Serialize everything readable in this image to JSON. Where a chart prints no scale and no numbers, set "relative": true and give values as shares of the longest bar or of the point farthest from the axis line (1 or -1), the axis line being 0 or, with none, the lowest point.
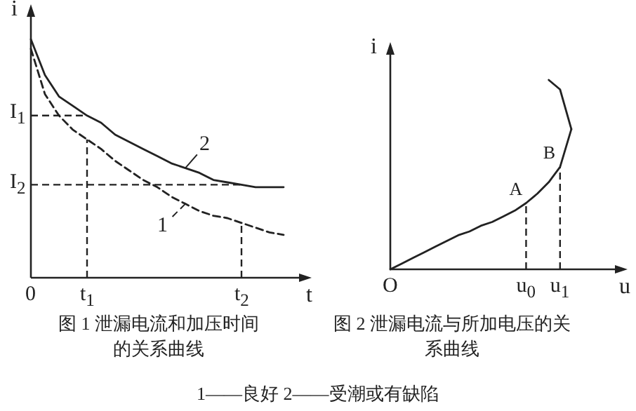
{
  "chart_data": [
    {
      "type": "line",
      "relative": true,
      "title": "图 1 泄漏电流和加压时间的关系曲线",
      "xlabel": "t",
      "ylabel": "i",
      "categories": [
        "0",
        null,
        null,
        null,
        "t$_{1}$",
        null,
        null,
        null,
        null,
        null,
        null,
        null,
        null,
        null,
        null,
        "t$_{2}$",
        null,
        null,
        null
      ],
      "series": [
        {
          "name": "1",
          "color": "#222222",
          "line_style": "dashed",
          "values": [
            0.96,
            0.77,
            0.68,
            0.62,
            0.58,
            0.54,
            0.49,
            0.45,
            0.41,
            0.38,
            0.34,
            0.31,
            0.28,
            0.26,
            0.25,
            0.23,
            0.21,
            0.19,
            0.18
          ]
        },
        {
          "name": "2",
          "color": "#222222",
          "line_style": "solid",
          "values": [
            1,
            0.85,
            0.76,
            0.72,
            0.68,
            0.65,
            0.6,
            0.57,
            0.54,
            0.51,
            0.48,
            0.46,
            0.44,
            0.41,
            0.4,
            0.39,
            0.38,
            0.38,
            0.38
          ]
        }
      ],
      "ref_lines": [
        {
          "axis": "y",
          "value": 0.68,
          "label": "I$_{1}$",
          "line_style": "dashed"
        },
        {
          "axis": "x",
          "value": "t$_{1}$",
          "line_style": "dashed"
        },
        {
          "axis": "y",
          "value": 0.39,
          "label": "I$_{2}$",
          "line_style": "dashed"
        },
        {
          "axis": "x",
          "value": "t$_{2}$",
          "line_style": "dashed"
        }
      ],
      "annotations": [
        "1——良好 2——受潮或有缺陷"
      ]
    },
    {
      "type": "line",
      "relative": true,
      "title": "图 2 泄漏电流与所加电压的关系曲线",
      "xlabel": "u",
      "ylabel": "i",
      "categories": [
        "O",
        null,
        null,
        null,
        null,
        null,
        null,
        null,
        null,
        null,
        null,
        null,
        "u$_{0}$",
        null,
        null,
        "u$_{1}$",
        null
      ],
      "series": [
        {
          "color": "#222222",
          "line_style": "solid",
          "values": [
            0,
            0.03,
            0.06,
            0.09,
            0.12,
            0.15,
            0.18,
            0.2,
            0.23,
            0.25,
            0.28,
            0.31,
            0.35,
            0.4,
            0.46,
            0.54,
            0.74
          ]
        },
        {
          "color": "#222222",
          "line_style": "solid",
          "values": [
            null,
            null,
            null,
            null,
            null,
            null,
            null,
            null,
            null,
            null,
            null,
            null,
            null,
            null,
            1,
            0.95,
            0.74
          ]
        }
      ],
      "ref_lines": [
        {
          "axis": "x",
          "value": "u$_{0}$",
          "line_style": "dashed"
        },
        {
          "axis": "x",
          "value": "u$_{1}$",
          "line_style": "dashed"
        }
      ],
      "annotations": [
        {
          "text": "A",
          "x": "u$_{0}$",
          "y": 0.35
        },
        {
          "text": "B",
          "x": "u$_{1}$",
          "y": 0.54
        }
      ]
    }
  ]
}
